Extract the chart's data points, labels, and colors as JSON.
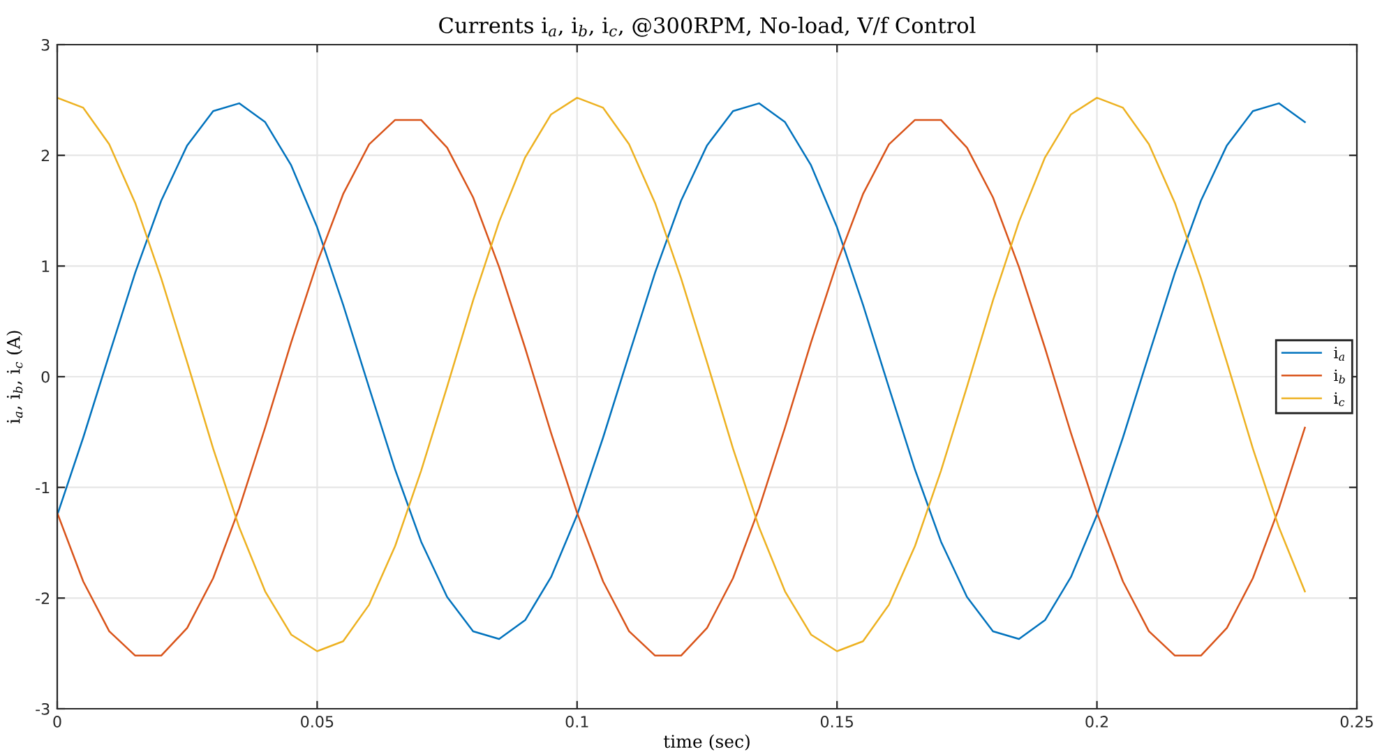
{
  "chart_data": {
    "type": "line",
    "title": "Currents i$_{a}$, i$_{b}$, i$_{c}$, @300RPM, No-load, V/f Control",
    "xlabel": "time (sec)",
    "ylabel": "i$_{a}$, i$_{b}$, i$_{c}$ (A)",
    "x": [
      0,
      0.005,
      0.01,
      0.015,
      0.02,
      0.025,
      0.03,
      0.035,
      0.04,
      0.045,
      0.05,
      0.055,
      0.06,
      0.065,
      0.07,
      0.075,
      0.08,
      0.085,
      0.09,
      0.095,
      0.1,
      0.105,
      0.11,
      0.115,
      0.12,
      0.125,
      0.13,
      0.135,
      0.14,
      0.145,
      0.15,
      0.155,
      0.16,
      0.165,
      0.17,
      0.175,
      0.18,
      0.185,
      0.19,
      0.195,
      0.2,
      0.205,
      0.21,
      0.215,
      0.22,
      0.225,
      0.23,
      0.235,
      0.24
    ],
    "series": [
      {
        "name": "i$_{a}$",
        "color": "#0072bd",
        "values": [
          -1.25,
          -0.55,
          0.2,
          0.94,
          1.59,
          2.09,
          2.4,
          2.47,
          2.3,
          1.91,
          1.35,
          0.65,
          -0.1,
          -0.84,
          -1.49,
          -1.99,
          -2.3,
          -2.37,
          -2.2,
          -1.81,
          -1.25,
          -0.55,
          0.2,
          0.94,
          1.59,
          2.09,
          2.4,
          2.47,
          2.3,
          1.91,
          1.35,
          0.65,
          -0.1,
          -0.84,
          -1.49,
          -1.99,
          -2.3,
          -2.37,
          -2.2,
          -1.81,
          -1.25,
          -0.55,
          0.2,
          0.94,
          1.59,
          2.09,
          2.4,
          2.47,
          2.3
        ]
      },
      {
        "name": "i$_{b}$",
        "color": "#d95319",
        "values": [
          -1.23,
          -1.85,
          -2.3,
          -2.52,
          -2.52,
          -2.27,
          -1.82,
          -1.19,
          -0.46,
          0.31,
          1.03,
          1.65,
          2.1,
          2.32,
          2.32,
          2.07,
          1.62,
          0.99,
          0.26,
          -0.51,
          -1.23,
          -1.85,
          -2.3,
          -2.52,
          -2.52,
          -2.27,
          -1.82,
          -1.19,
          -0.46,
          0.31,
          1.03,
          1.65,
          2.1,
          2.32,
          2.32,
          2.07,
          1.62,
          0.99,
          0.26,
          -0.51,
          -1.23,
          -1.85,
          -2.3,
          -2.52,
          -2.52,
          -2.27,
          -1.82,
          -1.19,
          -0.46
        ]
      },
      {
        "name": "i$_{c}$",
        "color": "#edb120",
        "values": [
          2.52,
          2.43,
          2.1,
          1.57,
          0.89,
          0.13,
          -0.65,
          -1.36,
          -1.94,
          -2.33,
          -2.48,
          -2.39,
          -2.06,
          -1.53,
          -0.85,
          -0.09,
          0.69,
          1.4,
          1.98,
          2.37,
          2.52,
          2.43,
          2.1,
          1.57,
          0.89,
          0.13,
          -0.65,
          -1.36,
          -1.94,
          -2.33,
          -2.48,
          -2.39,
          -2.06,
          -1.53,
          -0.85,
          -0.09,
          0.69,
          1.4,
          1.98,
          2.37,
          2.52,
          2.43,
          2.1,
          1.57,
          0.89,
          0.13,
          -0.65,
          -1.36,
          -1.94
        ]
      }
    ],
    "xlim": [
      0,
      0.25
    ],
    "xticks": [
      0,
      0.05,
      0.1,
      0.15,
      0.2,
      0.25
    ],
    "ylim": [
      -3,
      3
    ],
    "yticks": [
      -3,
      -2,
      -1,
      0,
      1,
      2,
      3
    ],
    "grid": true,
    "legend": "right"
  }
}
